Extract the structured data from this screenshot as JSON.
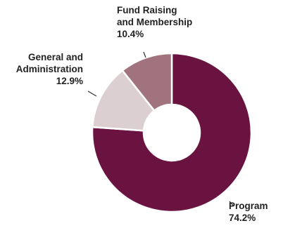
{
  "chart_data": {
    "type": "pie",
    "donut": true,
    "start_angle_deg": 0,
    "direction": "clockwise",
    "slices": [
      {
        "label_lines": [
          "Program"
        ],
        "value": 74.2,
        "value_label": "74.2%",
        "color": "#6a1240"
      },
      {
        "label_lines": [
          "General and",
          "Administration"
        ],
        "value": 12.9,
        "value_label": "12.9%",
        "color": "#dccfd1"
      },
      {
        "label_lines": [
          "Fund Raising",
          "and Membership"
        ],
        "value": 10.4,
        "value_label": "10.4%",
        "color": "#a0737f"
      }
    ]
  }
}
